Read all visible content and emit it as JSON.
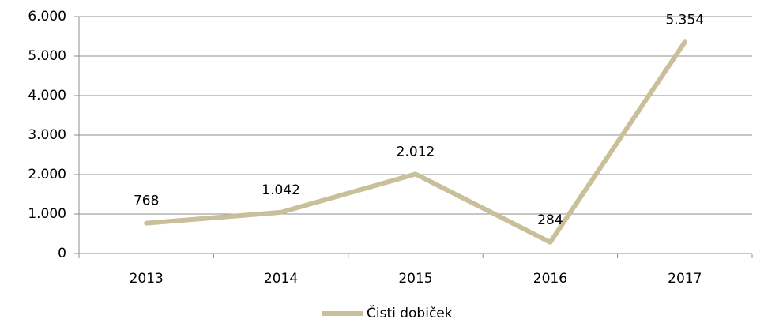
{
  "chart_data": {
    "type": "line",
    "categories": [
      "2013",
      "2014",
      "2015",
      "2016",
      "2017"
    ],
    "series": [
      {
        "name": "Čisti dobiček",
        "color": "#c9c09b",
        "values": [
          768,
          1042,
          2012,
          284,
          5354
        ],
        "value_labels": [
          "768",
          "1.042",
          "2.012",
          "284",
          "5.354"
        ]
      }
    ],
    "ylim": [
      0,
      6000
    ],
    "yticks": [
      0,
      {
        "value": 1000,
        "label": "1.000"
      },
      {
        "value": 2000,
        "label": "2.000"
      },
      {
        "value": 3000,
        "label": "3.000"
      },
      {
        "value": 4000,
        "label": "4.000"
      },
      {
        "value": 5000,
        "label": "5.000"
      },
      {
        "value": 6000,
        "label": "6.000"
      }
    ],
    "grid": true,
    "legend": "bottom"
  }
}
